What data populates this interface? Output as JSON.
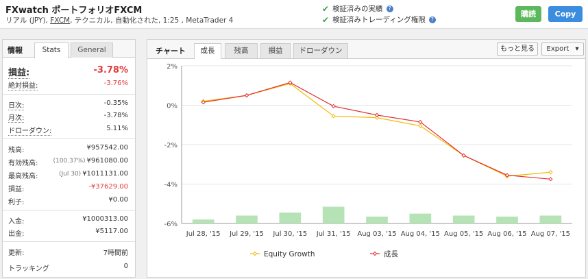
{
  "header": {
    "title": "FXwatch ポートフォリオFXCM",
    "subtitle_prefix": "リアル (JPY), ",
    "subtitle_broker": "FXCM",
    "subtitle_suffix": ", テクニカル, 自動化された, 1:25 , MetaTrader 4",
    "verified_track_record": "検証済みの実績",
    "verified_trading_privileges": "検証済みトレーディング権限",
    "follow_button": "購読",
    "copy_button": "Copy",
    "help_glyph": "?"
  },
  "left_panel": {
    "title": "情報",
    "tabs": [
      "Stats",
      "General"
    ],
    "gain_label": "損益:",
    "gain_value": "-3.78%",
    "abs_gain_label": "絶対損益:",
    "abs_gain_value": "-3.76%",
    "daily_label": "日次:",
    "daily_value": "-0.35%",
    "monthly_label": "月次:",
    "monthly_value": "-3.78%",
    "drawdown_label": "ドローダウン:",
    "drawdown_value": "5.11%",
    "balance_label": "残高:",
    "balance_value": "¥957542.00",
    "equity_label": "有効残高:",
    "equity_sub": "(100.37%)",
    "equity_value": "¥961080.00",
    "highest_label": "最高残高:",
    "highest_sub": "(Jul 30)",
    "highest_value": "¥1011131.00",
    "profit_label": "損益:",
    "profit_value": "-¥37629.00",
    "interest_label": "利子:",
    "interest_value": "¥0.00",
    "deposits_label": "入金:",
    "deposits_value": "¥1000313.00",
    "withdrawals_label": "出金:",
    "withdrawals_value": "¥5117.00",
    "updated_label": "更新:",
    "updated_value": "7時間前",
    "tracking_label": "トラッキング",
    "tracking_value": "0"
  },
  "right_panel": {
    "title": "チャート",
    "tabs": [
      "成長",
      "残高",
      "損益",
      "ドローダウン"
    ],
    "more_button": "もっと見る",
    "export_label": "Export",
    "chevron_glyph": "▾"
  },
  "colors": {
    "equity_line": "#f5b800",
    "growth_line": "#e03030",
    "bars": "#b5e3b5",
    "negative": "#e23b3b",
    "follow_button": "#5cb85c",
    "copy_button": "#3c8de0"
  },
  "chart_data": {
    "type": "line",
    "categories": [
      "Jul 28, '15",
      "Jul 29, '15",
      "Jul 30, '15",
      "Jul 31, '15",
      "Aug 03, '15",
      "Aug 04, '15",
      "Aug 05, '15",
      "Aug 06, '15",
      "Aug 07, '15"
    ],
    "series": [
      {
        "name": "Equity Growth",
        "color": "#f5b800",
        "values": [
          0.2,
          0.5,
          1.1,
          -0.55,
          -0.63,
          -1.05,
          -2.55,
          -3.6,
          -3.4
        ]
      },
      {
        "name": "成長",
        "color": "#e03030",
        "values": [
          0.15,
          0.5,
          1.15,
          -0.05,
          -0.5,
          -0.85,
          -2.55,
          -3.55,
          -3.75
        ]
      }
    ],
    "bars": [
      0.2,
      0.4,
      0.55,
      0.85,
      0.35,
      0.5,
      0.4,
      0.35,
      0.4
    ],
    "ylim": [
      -6,
      2
    ],
    "yticks": [
      2,
      0,
      -2,
      -4,
      -6
    ],
    "ytick_labels": [
      "2%",
      "0%",
      "-2%",
      "-4%",
      "-6%"
    ],
    "legend_position": "bottom",
    "grid": true
  }
}
